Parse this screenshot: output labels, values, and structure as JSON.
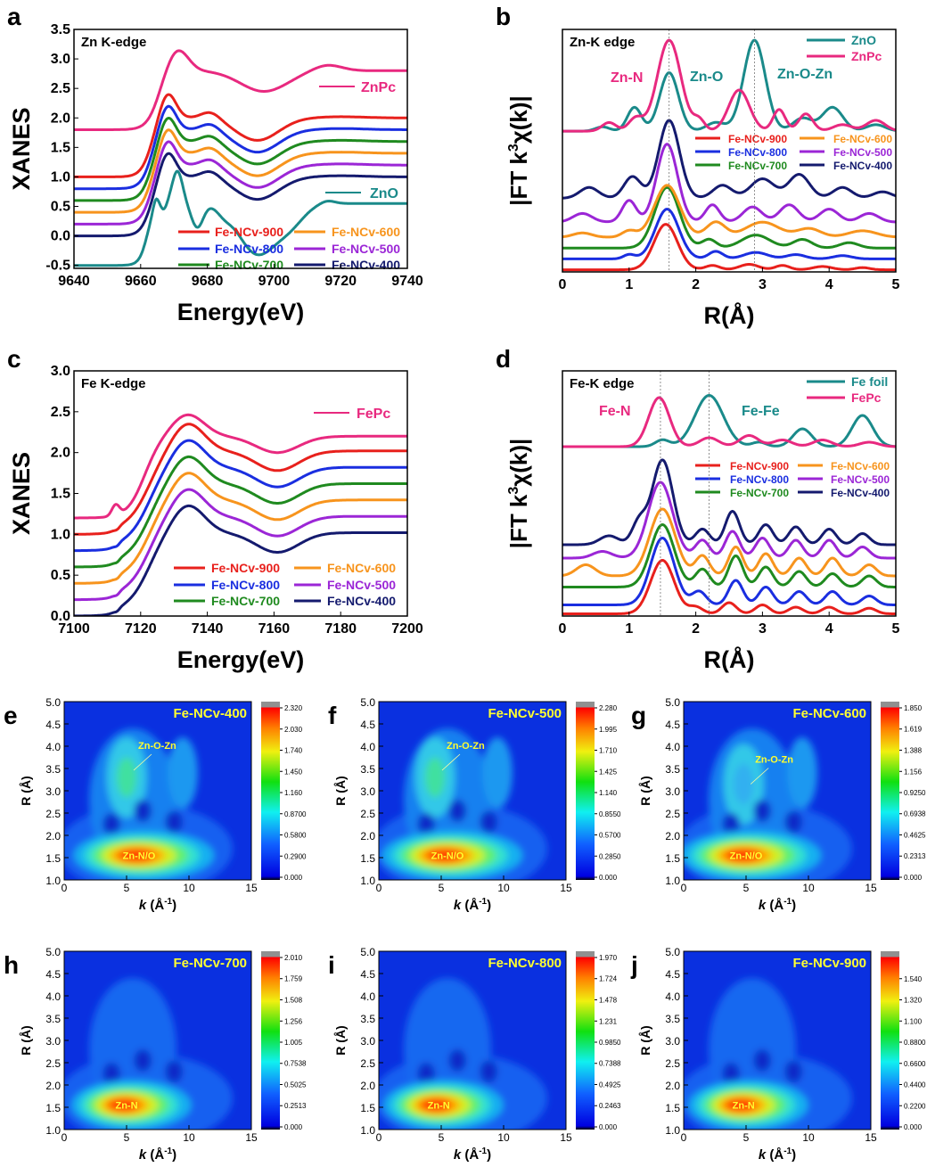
{
  "colors": {
    "Fe-NCv-900": "#e8201c",
    "Fe-NCv-800": "#1a2ee0",
    "Fe-NCv-700": "#1f8a1f",
    "Fe-NCv-600": "#f7941d",
    "Fe-NCv-500": "#9b26d6",
    "Fe-NCv-400": "#141a6e",
    "ZnPc": "#e8297f",
    "ZnO": "#1a8a8a",
    "FePc": "#e8297f",
    "Fe foil": "#1a8a8a",
    "annot_yellow": "#ffff30"
  },
  "chart_data": [
    {
      "panel": "a",
      "type": "line",
      "title": "Zn K-edge",
      "xlabel": "Energy(eV)",
      "ylabel": "XANES",
      "xlim": [
        9640,
        9740
      ],
      "ylim": [
        -0.55,
        3.5
      ],
      "xticks": [
        "9640",
        "9660",
        "9680",
        "9700",
        "9720",
        "9740"
      ],
      "yticks": [
        "-0.5",
        "0.0",
        "0.5",
        "1.0",
        "1.5",
        "2.0",
        "2.5",
        "3.0",
        "3.5"
      ],
      "series": [
        {
          "name": "ZnPc",
          "offset": 1.8
        },
        {
          "name": "Fe-NCv-900",
          "offset": 1.0
        },
        {
          "name": "Fe-NCv-800",
          "offset": 0.8
        },
        {
          "name": "Fe-NCv-700",
          "offset": 0.6
        },
        {
          "name": "Fe-NCv-600",
          "offset": 0.4
        },
        {
          "name": "Fe-NCv-500",
          "offset": 0.2
        },
        {
          "name": "Fe-NCv-400",
          "offset": 0.0
        },
        {
          "name": "ZnO",
          "offset": -0.5
        }
      ],
      "legend": [
        "Fe-NCv-900",
        "Fe-NCv-600",
        "Fe-NCv-800",
        "Fe-NCv-500",
        "Fe-NCv-700",
        "Fe-NCv-400"
      ],
      "labels": [
        "ZnPc",
        "ZnO"
      ]
    },
    {
      "panel": "b",
      "type": "line",
      "title": "Zn-K edge",
      "xlabel": "R(Å)",
      "ylabel": [
        "|FT k",
        "3",
        "χ(k)|"
      ],
      "xlim": [
        0,
        5
      ],
      "xticks": [
        "0",
        "1",
        "2",
        "3",
        "4",
        "5"
      ],
      "series": [
        {
          "name": "ZnO",
          "offset": 6.5
        },
        {
          "name": "ZnPc",
          "offset": 6.5
        },
        {
          "name": "Fe-NCv-900",
          "offset": 0.1
        },
        {
          "name": "Fe-NCv-800",
          "offset": 0.6
        },
        {
          "name": "Fe-NCv-700",
          "offset": 1.1
        },
        {
          "name": "Fe-NCv-600",
          "offset": 1.6
        },
        {
          "name": "Fe-NCv-500",
          "offset": 2.3
        },
        {
          "name": "Fe-NCv-400",
          "offset": 3.4
        }
      ],
      "legend_top": [
        "ZnO",
        "ZnPc"
      ],
      "legend": [
        "Fe-NCv-900",
        "Fe-NCv-600",
        "Fe-NCv-800",
        "Fe-NCv-500",
        "Fe-NCv-700",
        "Fe-NCv-400"
      ],
      "annotations": [
        {
          "text": "Zn-N",
          "R": 1.1
        },
        {
          "text": "Zn-O",
          "R": 1.6
        },
        {
          "text": "Zn-O-Zn",
          "R": 2.88
        }
      ]
    },
    {
      "panel": "c",
      "type": "line",
      "title": "Fe K-edge",
      "xlabel": "Energy(eV)",
      "ylabel": "XANES",
      "xlim": [
        7100,
        7200
      ],
      "ylim": [
        0,
        3.0
      ],
      "xticks": [
        "7100",
        "7120",
        "7140",
        "7160",
        "7180",
        "7200"
      ],
      "yticks": [
        "0.0",
        "0.5",
        "1.0",
        "1.5",
        "2.0",
        "2.5",
        "3.0"
      ],
      "series": [
        {
          "name": "FePc",
          "offset": 1.2
        },
        {
          "name": "Fe-NCv-900",
          "offset": 1.0
        },
        {
          "name": "Fe-NCv-800",
          "offset": 0.8
        },
        {
          "name": "Fe-NCv-700",
          "offset": 0.6
        },
        {
          "name": "Fe-NCv-600",
          "offset": 0.4
        },
        {
          "name": "Fe-NCv-500",
          "offset": 0.2
        },
        {
          "name": "Fe-NCv-400",
          "offset": 0.0
        }
      ],
      "legend": [
        "Fe-NCv-900",
        "Fe-NCv-600",
        "Fe-NCv-800",
        "Fe-NCv-500",
        "Fe-NCv-700",
        "Fe-NCv-400"
      ],
      "labels": [
        "FePc"
      ]
    },
    {
      "panel": "d",
      "type": "line",
      "title": "Fe-K edge",
      "xlabel": "R(Å)",
      "ylabel": [
        "|FT k",
        "3",
        "χ(k)|"
      ],
      "xlim": [
        0,
        5
      ],
      "xticks": [
        "0",
        "1",
        "2",
        "3",
        "4",
        "5"
      ],
      "series": [
        {
          "name": "Fe foil",
          "offset": 7.6
        },
        {
          "name": "FePc",
          "offset": 7.6
        },
        {
          "name": "Fe-NCv-900",
          "offset": 0.1
        },
        {
          "name": "Fe-NCv-800",
          "offset": 0.5
        },
        {
          "name": "Fe-NCv-700",
          "offset": 1.3
        },
        {
          "name": "Fe-NCv-600",
          "offset": 1.8
        },
        {
          "name": "Fe-NCv-500",
          "offset": 2.6
        },
        {
          "name": "Fe-NCv-400",
          "offset": 3.2
        }
      ],
      "legend_top": [
        "Fe foil",
        "FePc"
      ],
      "legend": [
        "Fe-NCv-900",
        "Fe-NCv-600",
        "Fe-NCv-800",
        "Fe-NCv-500",
        "Fe-NCv-700",
        "Fe-NCv-400"
      ],
      "annotations": [
        {
          "text": "Fe-N",
          "R": 1.47
        },
        {
          "text": "Fe-Fe",
          "R": 2.2
        }
      ]
    },
    {
      "panel": "e",
      "type": "heatmap",
      "title": "Fe-NCv-400",
      "xlabel": [
        "k",
        " (Å",
        "-1",
        ")"
      ],
      "ylabel": "R (Å)",
      "xlim": [
        0,
        15
      ],
      "ylim": [
        1,
        5
      ],
      "xticks": [
        "0",
        "5",
        "10",
        "15"
      ],
      "yticks": [
        "1.0",
        "1.5",
        "2.0",
        "2.5",
        "3.0",
        "3.5",
        "4.0",
        "4.5",
        "5.0"
      ],
      "vmax": 2.32,
      "colorbar": [
        "0.000",
        "0.2900",
        "0.5800",
        "0.8700",
        "1.160",
        "1.450",
        "1.740",
        "2.030",
        "2.320"
      ],
      "peak_label": "Zn-N/O",
      "peak": {
        "k": 6.0,
        "R": 1.55
      },
      "second_label": "Zn-O-Zn",
      "second": {
        "k": 5.0,
        "R": 3.3
      }
    },
    {
      "panel": "f",
      "type": "heatmap",
      "title": "Fe-NCv-500",
      "xlabel": [
        "k",
        " (Å",
        "-1",
        ")"
      ],
      "ylabel": "R (Å)",
      "xlim": [
        0,
        15
      ],
      "ylim": [
        1,
        5
      ],
      "xticks": [
        "0",
        "5",
        "10",
        "15"
      ],
      "yticks": [
        "1.0",
        "1.5",
        "2.0",
        "2.5",
        "3.0",
        "3.5",
        "4.0",
        "4.5",
        "5.0"
      ],
      "vmax": 2.28,
      "colorbar": [
        "0.000",
        "0.2850",
        "0.5700",
        "0.8550",
        "1.140",
        "1.425",
        "1.710",
        "1.995",
        "2.280"
      ],
      "peak_label": "Zn-N/O",
      "peak": {
        "k": 5.5,
        "R": 1.55
      },
      "second_label": "Zn-O-Zn",
      "second": {
        "k": 4.5,
        "R": 3.3
      }
    },
    {
      "panel": "g",
      "type": "heatmap",
      "title": "Fe-NCv-600",
      "xlabel": [
        "k",
        " (Å",
        "-1",
        ")"
      ],
      "ylabel": "R (Å)",
      "xlim": [
        0,
        15
      ],
      "ylim": [
        1,
        5
      ],
      "xticks": [
        "0",
        "5",
        "10",
        "15"
      ],
      "yticks": [
        "1.0",
        "1.5",
        "2.0",
        "2.5",
        "3.0",
        "3.5",
        "4.0",
        "4.5",
        "5.0"
      ],
      "vmax": 1.85,
      "colorbar": [
        "0.000",
        "0.2313",
        "0.4625",
        "0.6938",
        "0.9250",
        "1.156",
        "1.388",
        "1.619",
        "1.850"
      ],
      "peak_label": "Zn-N/O",
      "peak": {
        "k": 5.0,
        "R": 1.55
      },
      "second_label": "Zn-O-Zn",
      "second": {
        "k": 4.8,
        "R": 3.15
      }
    },
    {
      "panel": "h",
      "type": "heatmap",
      "title": "Fe-NCv-700",
      "xlabel": [
        "k",
        " (Å",
        "-1",
        ")"
      ],
      "ylabel": "R (Å)",
      "xlim": [
        0,
        15
      ],
      "ylim": [
        1,
        5
      ],
      "xticks": [
        "0",
        "5",
        "10",
        "15"
      ],
      "yticks": [
        "1.0",
        "1.5",
        "2.0",
        "2.5",
        "3.0",
        "3.5",
        "4.0",
        "4.5",
        "5.0"
      ],
      "vmax": 2.01,
      "colorbar": [
        "0.000",
        "0.2513",
        "0.5025",
        "0.7538",
        "1.005",
        "1.256",
        "1.508",
        "1.759",
        "2.010"
      ],
      "peak_label": "Zn-N",
      "peak": {
        "k": 5.0,
        "R": 1.55
      }
    },
    {
      "panel": "i",
      "type": "heatmap",
      "title": "Fe-NCv-800",
      "xlabel": [
        "k",
        " (Å",
        "-1",
        ")"
      ],
      "ylabel": "R (Å)",
      "xlim": [
        0,
        15
      ],
      "ylim": [
        1,
        5
      ],
      "xticks": [
        "0",
        "5",
        "10",
        "15"
      ],
      "yticks": [
        "1.0",
        "1.5",
        "2.0",
        "2.5",
        "3.0",
        "3.5",
        "4.0",
        "4.5",
        "5.0"
      ],
      "vmax": 1.97,
      "colorbar": [
        "0.000",
        "0.2463",
        "0.4925",
        "0.7388",
        "0.9850",
        "1.231",
        "1.478",
        "1.724",
        "1.970"
      ],
      "peak_label": "Zn-N",
      "peak": {
        "k": 4.8,
        "R": 1.55
      }
    },
    {
      "panel": "j",
      "type": "heatmap",
      "title": "Fe-NCv-900",
      "xlabel": [
        "k",
        " (Å",
        "-1",
        ")"
      ],
      "ylabel": "R (Å)",
      "xlim": [
        0,
        15
      ],
      "ylim": [
        1,
        5
      ],
      "xticks": [
        "0",
        "5",
        "10",
        "15"
      ],
      "yticks": [
        "1.0",
        "1.5",
        "2.0",
        "2.5",
        "3.0",
        "3.5",
        "4.0",
        "4.5",
        "5.0"
      ],
      "vmax": 1.76,
      "colorbar": [
        "0.000",
        "0.2200",
        "0.4400",
        "0.6600",
        "0.8800",
        "1.100",
        "1.320",
        "1.540"
      ],
      "peak_label": "Zn-N",
      "peak": {
        "k": 4.8,
        "R": 1.55
      }
    }
  ]
}
